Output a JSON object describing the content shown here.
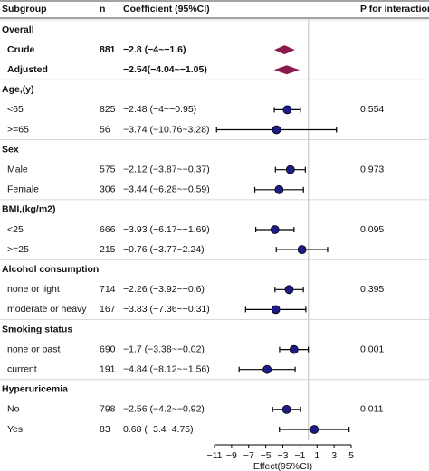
{
  "chart_data": {
    "type": "forest",
    "columns": {
      "subgroup": "Subgroup",
      "n": "n",
      "coef": "Coefficient (95%CI)",
      "p": "P for interaction"
    },
    "rows": [
      {
        "kind": "group",
        "label": "Overall"
      },
      {
        "kind": "diamond",
        "label": "Crude",
        "n": 881,
        "ci_text": "−2.8 (−4~−1.6)",
        "estimate": -2.8,
        "lower": -4,
        "upper": -1.6
      },
      {
        "kind": "diamond",
        "label": "Adjusted",
        "ci_text": "−2.54(−4.04~−1.05)",
        "estimate": -2.54,
        "lower": -4.04,
        "upper": -1.05
      },
      {
        "kind": "group",
        "label": "Age,(y)"
      },
      {
        "kind": "point",
        "label": "<65",
        "n": 825,
        "ci_text": "−2.48 (−4~−0.95)",
        "estimate": -2.48,
        "lower": -4,
        "upper": -0.95,
        "p": 0.554
      },
      {
        "kind": "point",
        "label": ">=65",
        "n": 56,
        "ci_text": "−3.74 (−10.76~3.28)",
        "estimate": -3.74,
        "lower": -10.76,
        "upper": 3.28
      },
      {
        "kind": "group",
        "label": "Sex"
      },
      {
        "kind": "point",
        "label": "Male",
        "n": 575,
        "ci_text": "−2.12 (−3.87~−0.37)",
        "estimate": -2.12,
        "lower": -3.87,
        "upper": -0.37,
        "p": 0.973
      },
      {
        "kind": "point",
        "label": "Female",
        "n": 306,
        "ci_text": "−3.44 (−6.28~−0.59)",
        "estimate": -3.44,
        "lower": -6.28,
        "upper": -0.59
      },
      {
        "kind": "group",
        "label": "BMI,(kg/m2)"
      },
      {
        "kind": "point",
        "label": "<25",
        "n": 666,
        "ci_text": "−3.93 (−6.17~−1.69)",
        "estimate": -3.93,
        "lower": -6.17,
        "upper": -1.69,
        "p": 0.095
      },
      {
        "kind": "point",
        "label": ">=25",
        "n": 215,
        "ci_text": "−0.76 (−3.77~2.24)",
        "estimate": -0.76,
        "lower": -3.77,
        "upper": 2.24
      },
      {
        "kind": "group",
        "label": "Alcohol consumption"
      },
      {
        "kind": "point",
        "label": "none or light",
        "n": 714,
        "ci_text": "−2.26 (−3.92~−0.6)",
        "estimate": -2.26,
        "lower": -3.92,
        "upper": -0.6,
        "p": 0.395
      },
      {
        "kind": "point",
        "label": "moderate or heavy",
        "n": 167,
        "ci_text": "−3.83 (−7.36~−0.31)",
        "estimate": -3.83,
        "lower": -7.36,
        "upper": -0.31
      },
      {
        "kind": "group",
        "label": "Smoking status"
      },
      {
        "kind": "point",
        "label": "none or past",
        "n": 690,
        "ci_text": "−1.7 (−3.38~−0.02)",
        "estimate": -1.7,
        "lower": -3.38,
        "upper": -0.02,
        "p": 0.001
      },
      {
        "kind": "point",
        "label": "current",
        "n": 191,
        "ci_text": "−4.84 (−8.12~−1.56)",
        "estimate": -4.84,
        "lower": -8.12,
        "upper": -1.56
      },
      {
        "kind": "group",
        "label": "Hyperuricemia"
      },
      {
        "kind": "point",
        "label": "No",
        "n": 798,
        "ci_text": "−2.56 (−4.2~−0.92)",
        "estimate": -2.56,
        "lower": -4.2,
        "upper": -0.92,
        "p": 0.011
      },
      {
        "kind": "point",
        "label": "Yes",
        "n": 83,
        "ci_text": "0.68 (−3.4~4.75)",
        "estimate": 0.68,
        "lower": -3.4,
        "upper": 4.75
      }
    ],
    "xlabel": "Effect(95%CI)",
    "xlim": [
      -11,
      5
    ],
    "xticks": [
      {
        "value": -11,
        "label": "−11"
      },
      {
        "value": -9,
        "label": "−9"
      },
      {
        "value": -7,
        "label": "−7"
      },
      {
        "value": -5,
        "label": "−5"
      },
      {
        "value": -3,
        "label": "−3"
      },
      {
        "value": -1,
        "label": "−1"
      },
      1,
      3,
      5
    ],
    "refline": 0,
    "point_color": "#1c1c8a",
    "diamond_color": "#8b1a4f"
  }
}
